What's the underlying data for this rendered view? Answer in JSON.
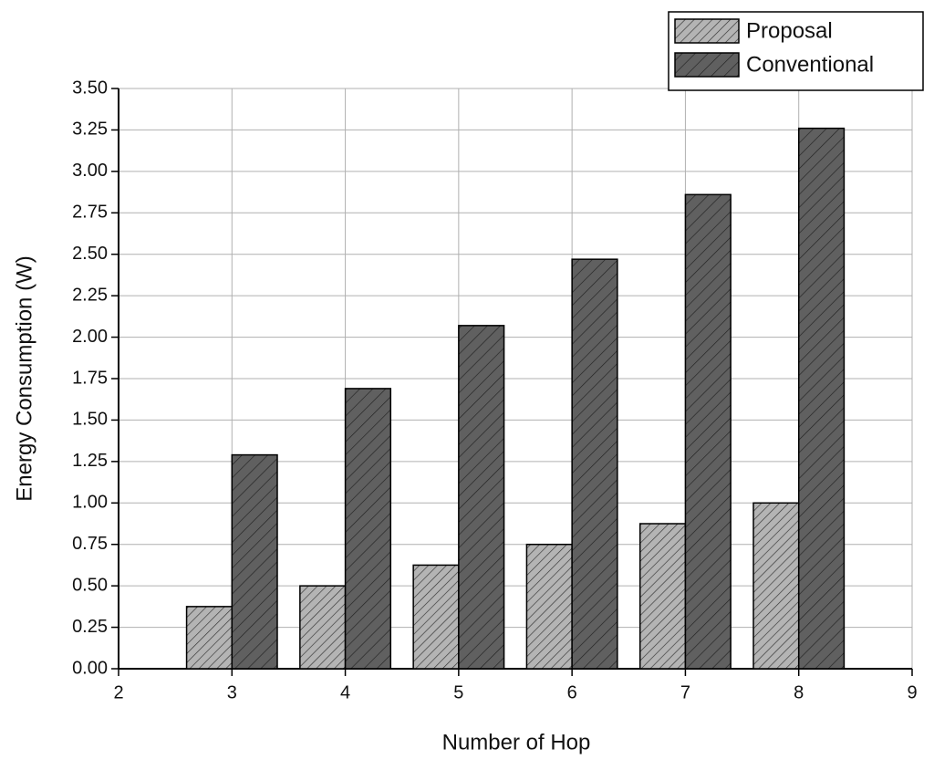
{
  "chart_data": {
    "type": "bar",
    "xlabel": "Number of Hop",
    "ylabel": "Energy Consumption (W)",
    "x": [
      3,
      4,
      5,
      6,
      7,
      8
    ],
    "series": [
      {
        "name": "Proposal",
        "color": "#b4b4b4",
        "values": [
          0.375,
          0.5,
          0.625,
          0.75,
          0.875,
          1.0
        ]
      },
      {
        "name": "Conventional",
        "color": "#606060",
        "values": [
          1.29,
          1.69,
          2.07,
          2.47,
          2.86,
          3.26
        ]
      }
    ],
    "xlim": [
      2,
      9
    ],
    "xticks": [
      2,
      3,
      4,
      5,
      6,
      7,
      8,
      9
    ],
    "ylim": [
      0,
      3.5
    ],
    "yticks": [
      {
        "value": 0,
        "label": "0.00"
      },
      {
        "value": 0.25,
        "label": "0.25"
      },
      {
        "value": 0.5,
        "label": "0.50"
      },
      {
        "value": 0.75,
        "label": "0.75"
      },
      {
        "value": 1,
        "label": "1.00"
      },
      {
        "value": 1.25,
        "label": "1.25"
      },
      {
        "value": 1.5,
        "label": "1.50"
      },
      {
        "value": 1.75,
        "label": "1.75"
      },
      {
        "value": 2,
        "label": "2.00"
      },
      {
        "value": 2.25,
        "label": "2.25"
      },
      {
        "value": 2.5,
        "label": "2.50"
      },
      {
        "value": 2.75,
        "label": "2.75"
      },
      {
        "value": 3,
        "label": "3.00"
      },
      {
        "value": 3.25,
        "label": "3.25"
      },
      {
        "value": 3.5,
        "label": "3.50"
      }
    ],
    "grid": true,
    "legend": "top-right"
  }
}
